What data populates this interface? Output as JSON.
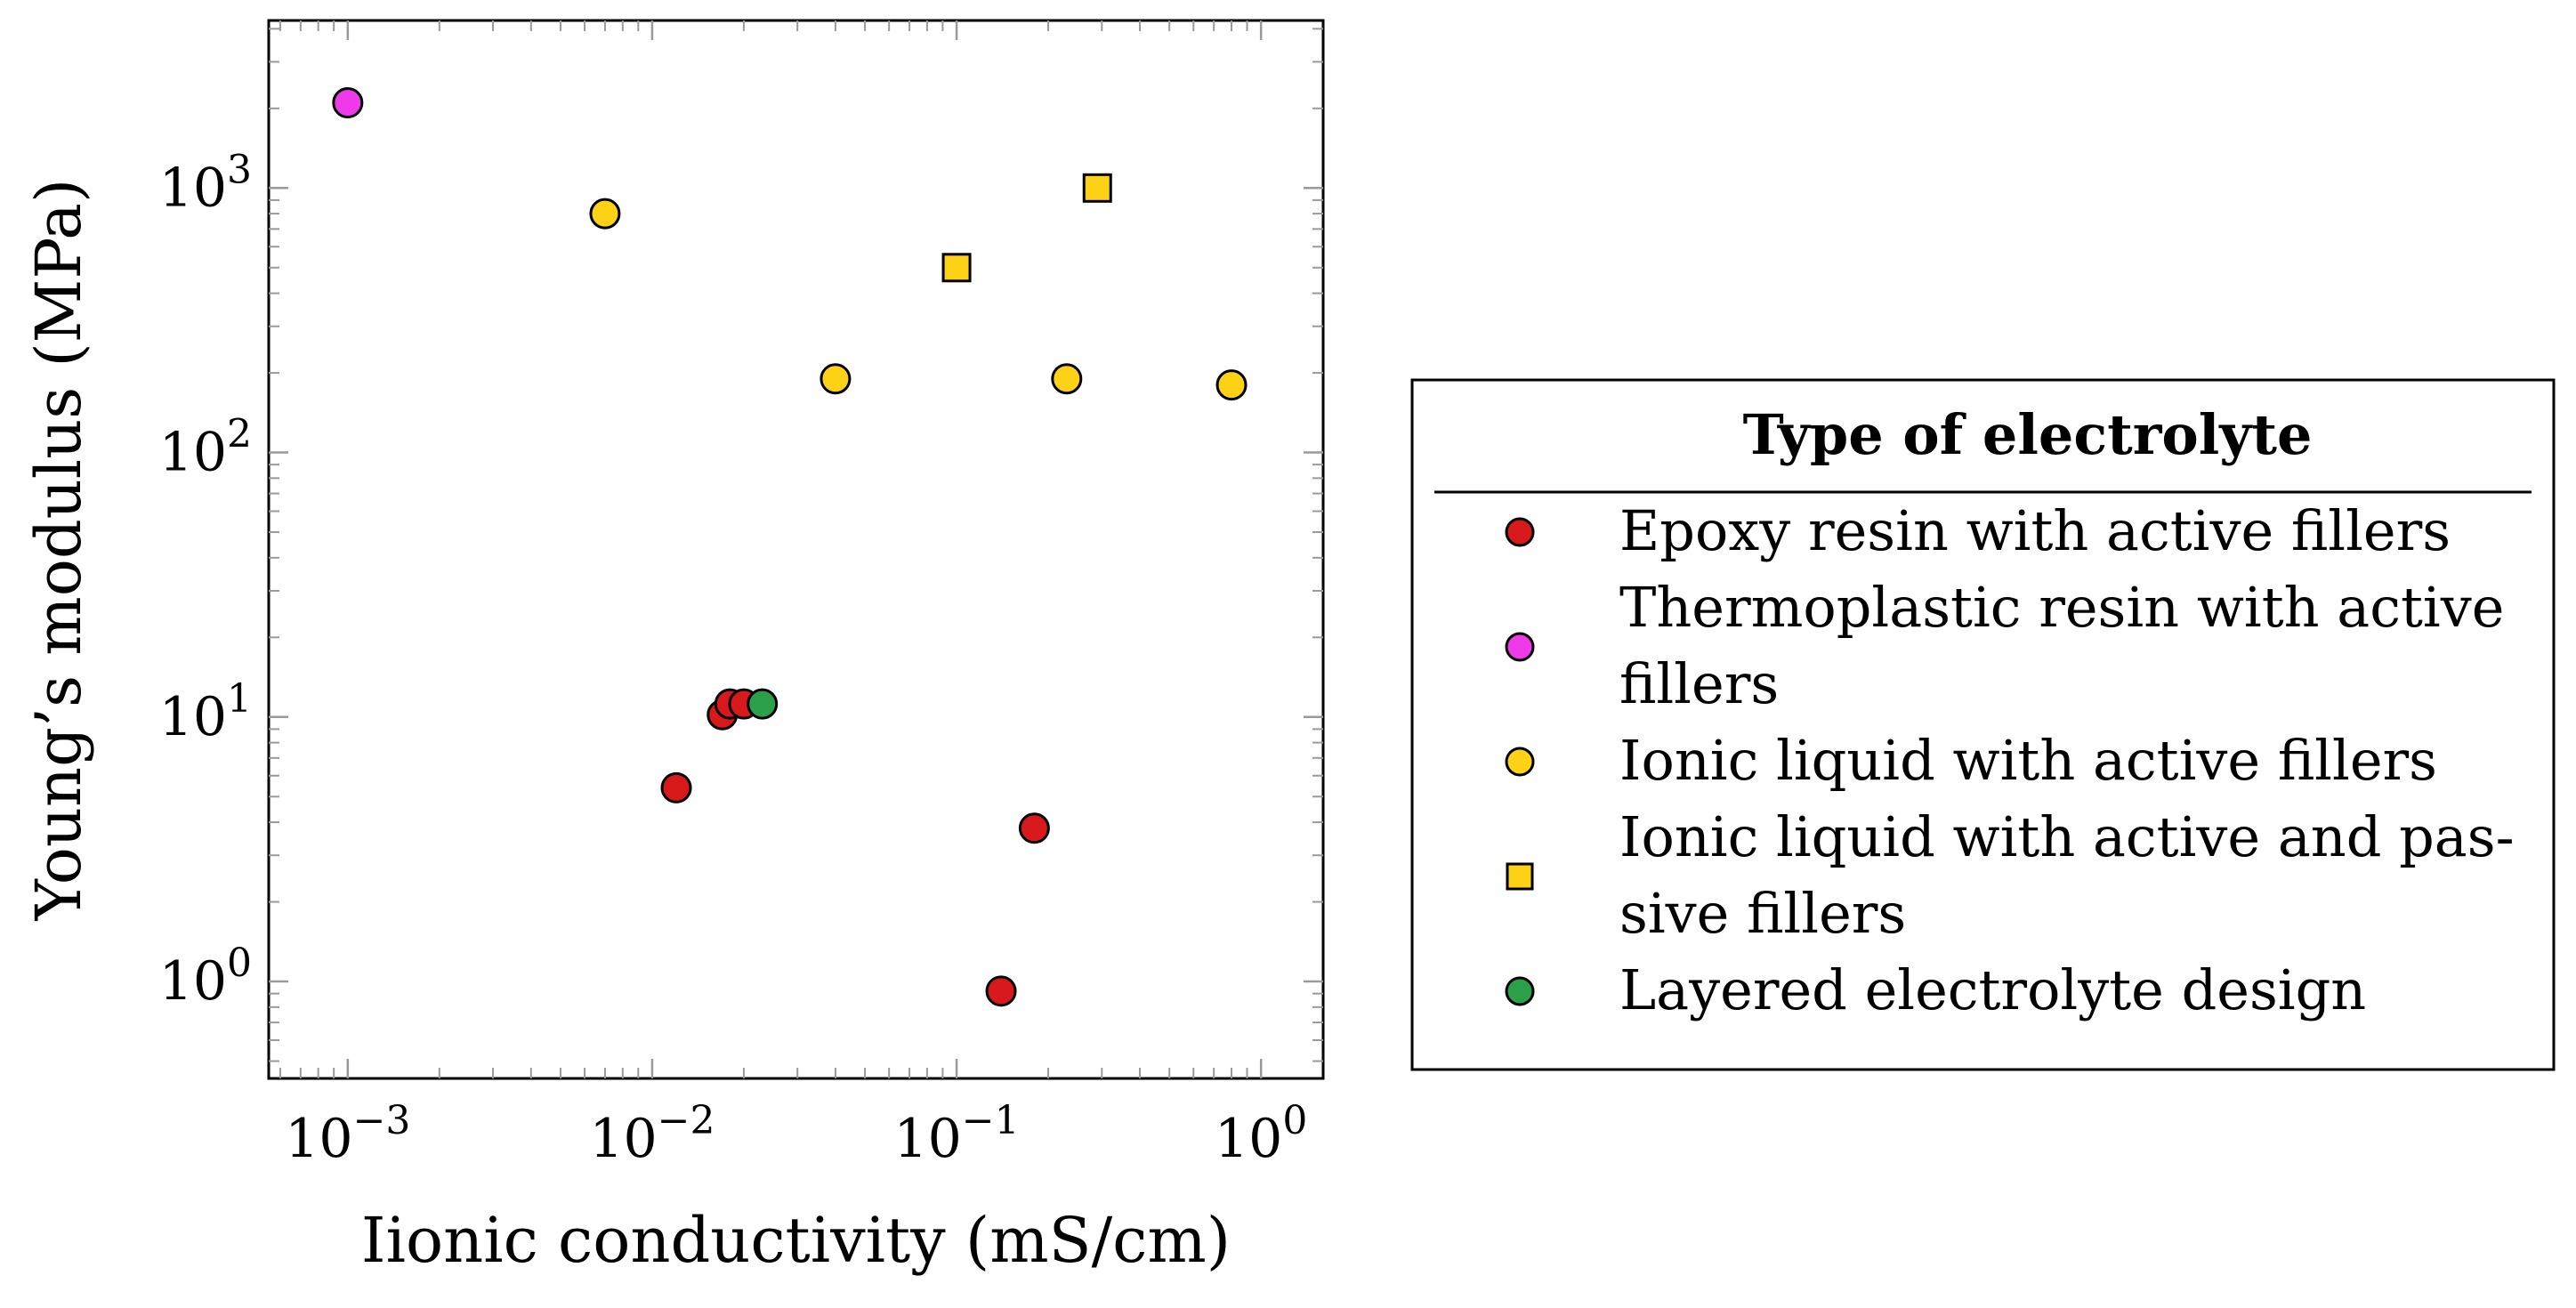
{
  "chart_data": {
    "type": "scatter",
    "title": "",
    "xlabel": "Iionic conductivity (mS/cm)",
    "ylabel": "Young’s modulus (MPa)",
    "xscale": "log",
    "yscale": "log",
    "xlim": [
      0.00055,
      1.6
    ],
    "ylim": [
      0.43,
      4300
    ],
    "grid": false,
    "x_ticks": [
      {
        "value": 0.001,
        "base": "10",
        "exp": "−3"
      },
      {
        "value": 0.01,
        "base": "10",
        "exp": "−2"
      },
      {
        "value": 0.1,
        "base": "10",
        "exp": "−1"
      },
      {
        "value": 1,
        "base": "10",
        "exp": "0"
      }
    ],
    "y_ticks": [
      {
        "value": 1,
        "base": "10",
        "exp": "0"
      },
      {
        "value": 10,
        "base": "10",
        "exp": "1"
      },
      {
        "value": 100,
        "base": "10",
        "exp": "2"
      },
      {
        "value": 1000,
        "base": "10",
        "exp": "3"
      }
    ],
    "legend": {
      "title": "Type of electrolyte",
      "position": "right"
    },
    "series": [
      {
        "name": "Epoxy resin with active fillers",
        "lines": [
          "Epoxy resin with active fillers"
        ],
        "marker": "circle",
        "color": "#d7191c",
        "points": [
          {
            "x": 0.012,
            "y": 5.4
          },
          {
            "x": 0.017,
            "y": 10.2
          },
          {
            "x": 0.018,
            "y": 11.2
          },
          {
            "x": 0.02,
            "y": 11.2
          },
          {
            "x": 0.18,
            "y": 3.8
          },
          {
            "x": 0.14,
            "y": 0.92
          }
        ]
      },
      {
        "name": "Thermoplastic resin with active fillers",
        "lines": [
          "Thermoplastic resin with active",
          "fillers"
        ],
        "marker": "circle",
        "color": "#ee3ae8",
        "points": [
          {
            "x": 0.001,
            "y": 2100
          }
        ]
      },
      {
        "name": "Ionic liquid with active fillers",
        "lines": [
          "Ionic liquid with active fillers"
        ],
        "marker": "circle",
        "color": "#fcd116",
        "points": [
          {
            "x": 0.007,
            "y": 800
          },
          {
            "x": 0.04,
            "y": 190
          },
          {
            "x": 0.23,
            "y": 190
          },
          {
            "x": 0.8,
            "y": 180
          }
        ]
      },
      {
        "name": "Ionic liquid with active and passive fillers",
        "lines": [
          "Ionic liquid with active and pas-",
          "sive fillers"
        ],
        "marker": "square",
        "color": "#fcd116",
        "points": [
          {
            "x": 0.1,
            "y": 500
          },
          {
            "x": 0.29,
            "y": 1000
          }
        ]
      },
      {
        "name": "Layered electrolyte design",
        "lines": [
          "Layered electrolyte design"
        ],
        "marker": "circle",
        "color": "#2ca048",
        "points": [
          {
            "x": 0.023,
            "y": 11.2
          }
        ]
      }
    ]
  }
}
